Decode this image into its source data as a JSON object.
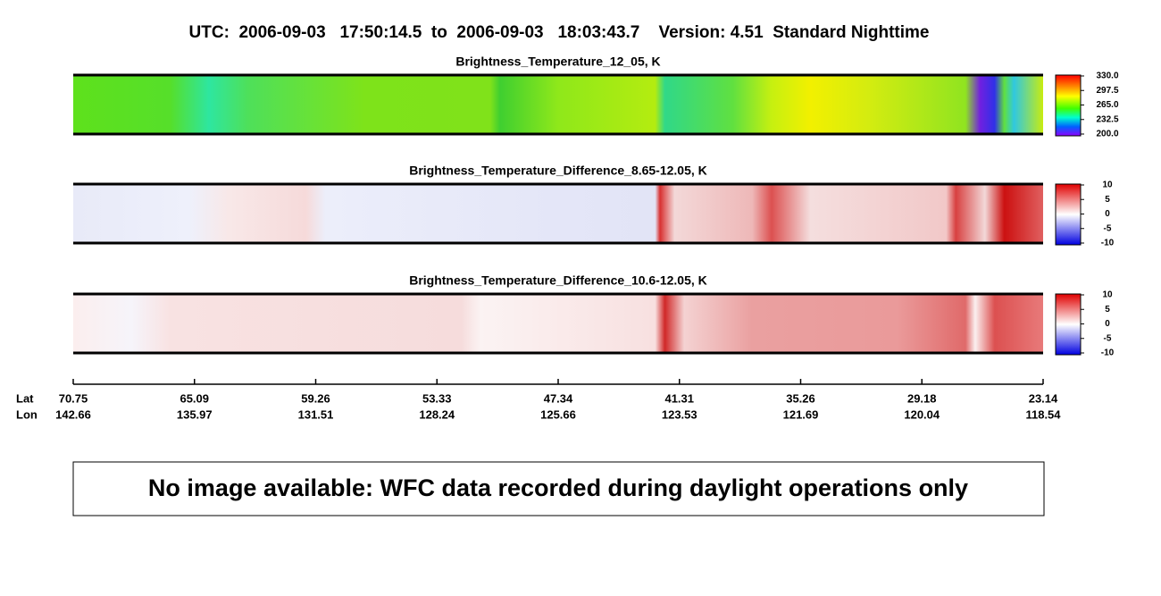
{
  "header": {
    "title": "UTC:  2006-09-03   17:50:14.5  to  2006-09-03   18:03:43.7    Version: 4.51  Standard Nighttime"
  },
  "panels": [
    {
      "title": "Brightness_Temperature_12_05, K",
      "colorbar_ticks": [
        {
          "value": 330,
          "label": "330.0"
        },
        {
          "value": 297.5,
          "label": "297.5"
        },
        {
          "value": 265,
          "label": "265.0"
        },
        {
          "value": 232.5,
          "label": "232.5"
        },
        {
          "value": 200,
          "label": "200.0"
        }
      ]
    },
    {
      "title": "Brightness_Temperature_Difference_8.65-12.05, K",
      "colorbar_ticks": [
        10,
        5,
        0,
        -5,
        -10
      ]
    },
    {
      "title": "Brightness_Temperature_Difference_10.6-12.05, K",
      "colorbar_ticks": [
        10,
        5,
        0,
        -5,
        -10
      ]
    }
  ],
  "axis": {
    "lat_heading": "Lat",
    "lon_heading": "Lon",
    "lat": [
      70.75,
      65.09,
      59.26,
      53.33,
      47.34,
      41.31,
      35.26,
      29.18,
      23.14
    ],
    "lon": [
      142.66,
      135.97,
      131.51,
      128.24,
      125.66,
      123.53,
      121.69,
      120.04,
      118.54
    ]
  },
  "notice": "No image available: WFC data recorded during daylight operations only"
}
